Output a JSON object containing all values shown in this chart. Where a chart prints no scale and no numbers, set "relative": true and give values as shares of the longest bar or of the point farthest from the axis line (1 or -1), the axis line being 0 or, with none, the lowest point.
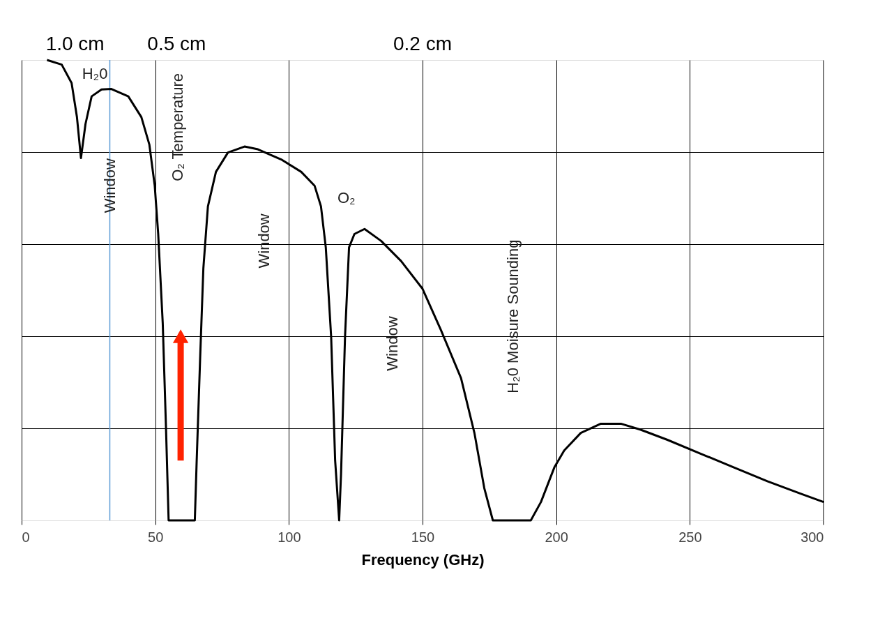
{
  "chart_data": {
    "type": "line",
    "relative": true,
    "xlabel": "Frequency (GHz)",
    "xlim": [
      0,
      300
    ],
    "xticks": [
      0,
      50,
      100,
      150,
      200,
      250,
      300
    ],
    "grid": true,
    "marker": "none",
    "line_style": "solid",
    "series": [
      {
        "color": "#000000",
        "x": [
          9.5,
          15,
          18.7,
          20.7,
          22.2,
          23.9,
          26.2,
          29.9,
          33.6,
          39.9,
          44.8,
          47.8,
          49.8,
          51.1,
          52.8,
          54,
          55,
          64.8,
          65.5,
          66.8,
          68,
          69.7,
          72.7,
          77.2,
          83.4,
          88.4,
          97.1,
          104.6,
          109.6,
          112,
          113.8,
          115.8,
          117.3,
          118.8,
          119.5,
          121,
          122.5,
          124.5,
          128.3,
          134.5,
          142,
          150,
          156.9,
          164.4,
          169.4,
          173.1,
          176.3,
          190.5,
          194.3,
          199.3,
          203,
          209.2,
          216.7,
          224.2,
          231.6,
          241.6,
          254,
          266.5,
          279,
          291.4,
          300
        ],
        "values": [
          1.0,
          0.99,
          0.95,
          0.876,
          0.787,
          0.861,
          0.921,
          0.936,
          0.937,
          0.921,
          0.876,
          0.816,
          0.727,
          0.622,
          0.428,
          0.204,
          0,
          0,
          0.13,
          0.354,
          0.548,
          0.682,
          0.757,
          0.799,
          0.812,
          0.806,
          0.784,
          0.757,
          0.727,
          0.682,
          0.593,
          0.399,
          0.13,
          0,
          0.1,
          0.4,
          0.593,
          0.622,
          0.633,
          0.607,
          0.563,
          0.503,
          0.413,
          0.309,
          0.19,
          0.07,
          0,
          0,
          0.04,
          0.115,
          0.152,
          0.19,
          0.21,
          0.21,
          0.197,
          0.175,
          0.145,
          0.115,
          0.085,
          0.058,
          0.04
        ]
      }
    ],
    "ref_lines": [
      {
        "axis": "x",
        "value": 33,
        "color": "#5b9bd5"
      }
    ],
    "annotations": [
      "H₂0",
      "O₂",
      "Window",
      "O₂ Temperature",
      "Window",
      "Window",
      "H₂0 Moisure Sounding",
      "1.0 cm",
      "0.5 cm",
      "0.2 cm"
    ]
  }
}
